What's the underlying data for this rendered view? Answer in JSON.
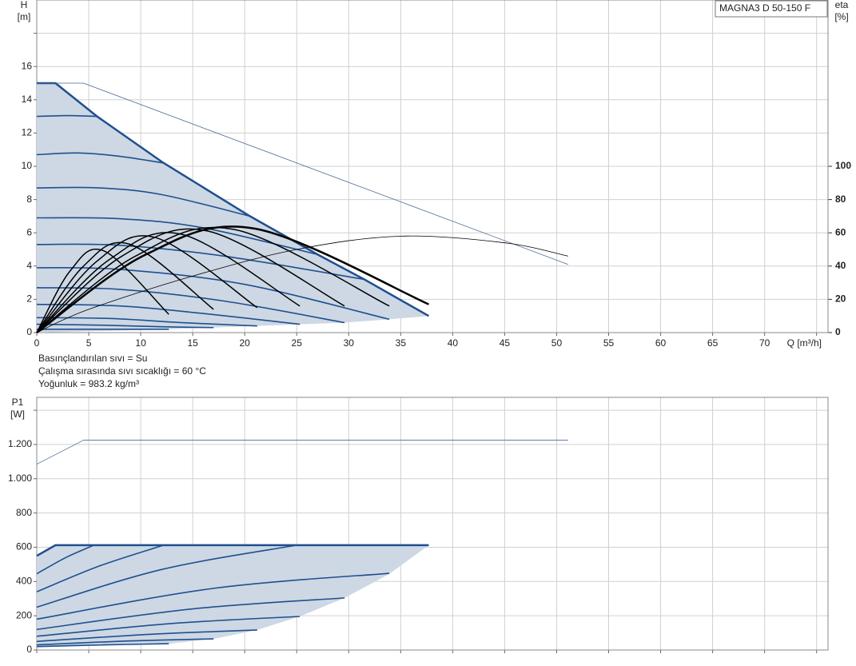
{
  "model": "MAGNA3 D 50-150 F",
  "notes": [
    "Basınçlandırılan sıvı = Su",
    "Çalışma sırasında sıvı sıcaklığı = 60 °C",
    "Yoğunluk = 983.2 kg/m³"
  ],
  "chart_data": [
    {
      "type": "line",
      "ylabel": "H",
      "yunit": "[m]",
      "y2label": "eta",
      "y2unit": "[%]",
      "xlabel": "Q [m³/h]",
      "xlim": [
        0,
        76.1
      ],
      "ylim": [
        0,
        20
      ],
      "y2lim": [
        0,
        200
      ],
      "xticks": [
        0,
        5,
        10,
        15,
        20,
        25,
        30,
        35,
        40,
        45,
        50,
        55,
        60,
        65,
        70,
        {
          "value": 75,
          "label": null
        }
      ],
      "yticks": [
        0,
        2,
        4,
        6,
        8,
        10,
        12,
        14,
        16,
        {
          "value": 18,
          "label": null
        }
      ],
      "y2ticks": [
        0,
        20,
        40,
        60,
        80,
        100
      ],
      "grid": true,
      "fill_color": "#cdd8e4",
      "lower": {
        "x": [
          0,
          12.7,
          17,
          21.2,
          25.3,
          29.6,
          33.9,
          37.7
        ],
        "values": [
          0,
          0.2,
          0.3,
          0.4,
          0.5,
          0.6,
          0.8,
          1.0
        ]
      },
      "series": [
        {
          "color": "#1f4f8f",
          "width": 2.5,
          "smooth": false,
          "x": [
            0,
            1.8,
            5.8,
            12.2,
            20.5,
            27,
            31.5,
            37.7
          ],
          "values": [
            15,
            15,
            13,
            10.2,
            7.0,
            4.7,
            3.2,
            1.0
          ]
        },
        {
          "color": "#1f4f8f",
          "width": 1.6,
          "smooth": true,
          "x": [
            0,
            3,
            5.8
          ],
          "values": [
            13,
            13.05,
            13
          ]
        },
        {
          "color": "#1f4f8f",
          "width": 1.6,
          "smooth": true,
          "x": [
            0,
            4,
            8,
            12.2
          ],
          "values": [
            10.7,
            10.8,
            10.6,
            10.2
          ]
        },
        {
          "color": "#1f4f8f",
          "width": 1.6,
          "smooth": true,
          "x": [
            0,
            6,
            12,
            20.5
          ],
          "values": [
            8.7,
            8.7,
            8.3,
            7.0
          ]
        },
        {
          "color": "#1f4f8f",
          "width": 1.6,
          "smooth": true,
          "x": [
            0,
            8,
            16,
            27
          ],
          "values": [
            6.9,
            6.85,
            6.3,
            4.7
          ]
        },
        {
          "color": "#1f4f8f",
          "width": 1.6,
          "smooth": true,
          "x": [
            0,
            8,
            18,
            31.5
          ],
          "values": [
            5.3,
            5.25,
            4.6,
            3.2
          ]
        },
        {
          "color": "#1f4f8f",
          "width": 1.6,
          "smooth": true,
          "x": [
            0,
            8,
            20,
            33.9
          ],
          "values": [
            3.9,
            3.8,
            2.9,
            0.8
          ]
        },
        {
          "color": "#1f4f8f",
          "width": 1.6,
          "smooth": true,
          "x": [
            0,
            8,
            18,
            29.6
          ],
          "values": [
            2.7,
            2.6,
            1.9,
            0.6
          ]
        },
        {
          "color": "#1f4f8f",
          "width": 1.6,
          "smooth": true,
          "x": [
            0,
            8,
            16,
            25.3
          ],
          "values": [
            1.7,
            1.6,
            1.15,
            0.5
          ]
        },
        {
          "color": "#1f4f8f",
          "width": 1.6,
          "smooth": true,
          "x": [
            0,
            7,
            14,
            21.2
          ],
          "values": [
            0.9,
            0.85,
            0.6,
            0.4
          ]
        },
        {
          "color": "#1f4f8f",
          "width": 1.6,
          "smooth": true,
          "x": [
            0,
            6,
            12,
            17
          ],
          "values": [
            0.5,
            0.45,
            0.35,
            0.3
          ]
        },
        {
          "color": "#1f4f8f",
          "width": 1.6,
          "smooth": true,
          "x": [
            0,
            6,
            12.7
          ],
          "values": [
            0.2,
            0.2,
            0.2
          ]
        },
        {
          "color": "#4a6a96",
          "width": 0.8,
          "smooth": false,
          "x": [
            0,
            4.5,
            51.1
          ],
          "values": [
            15,
            15,
            4.1
          ]
        },
        {
          "color": "#000000",
          "width": 0.8,
          "smooth": true,
          "axis": "y2",
          "x": [
            0,
            5,
            15,
            25,
            35,
            45,
            51.1
          ],
          "values": [
            0,
            14,
            34,
            50,
            58,
            54,
            46
          ]
        },
        {
          "color": "#000000",
          "width": 1.5,
          "smooth": true,
          "axis": "y2",
          "x": [
            0,
            3.2,
            6.5,
            12.7
          ],
          "values": [
            0,
            37,
            49,
            11
          ]
        },
        {
          "color": "#000000",
          "width": 1.5,
          "smooth": true,
          "axis": "y2",
          "x": [
            0,
            4.5,
            9,
            17
          ],
          "values": [
            0,
            40,
            53,
            14
          ]
        },
        {
          "color": "#000000",
          "width": 1.5,
          "smooth": true,
          "axis": "y2",
          "x": [
            0,
            5.8,
            11.5,
            21.2
          ],
          "values": [
            0,
            43,
            57,
            15
          ]
        },
        {
          "color": "#000000",
          "width": 1.5,
          "smooth": true,
          "axis": "y2",
          "x": [
            0,
            7,
            14,
            25.3
          ],
          "values": [
            0,
            44,
            59,
            16
          ]
        },
        {
          "color": "#000000",
          "width": 1.5,
          "smooth": true,
          "axis": "y2",
          "x": [
            0,
            8.2,
            16.5,
            29.6
          ],
          "values": [
            0,
            46,
            61,
            16
          ]
        },
        {
          "color": "#000000",
          "width": 1.5,
          "smooth": true,
          "axis": "y2",
          "x": [
            0,
            9.5,
            19,
            33.9
          ],
          "values": [
            0,
            46,
            62,
            16
          ]
        },
        {
          "color": "#000000",
          "width": 2.5,
          "smooth": true,
          "axis": "y2",
          "x": [
            0,
            10.5,
            21,
            37.7
          ],
          "values": [
            0,
            47,
            62.5,
            17
          ]
        }
      ]
    },
    {
      "type": "line",
      "ylabel": "P1",
      "yunit": "[W]",
      "xlim": [
        0,
        76.1
      ],
      "ylim": [
        0,
        1475
      ],
      "xticks": [
        {
          "value": 0,
          "label": null
        },
        {
          "value": 5,
          "label": null
        },
        {
          "value": 10,
          "label": null
        },
        {
          "value": 15,
          "label": null
        },
        {
          "value": 20,
          "label": null
        },
        {
          "value": 25,
          "label": null
        },
        {
          "value": 30,
          "label": null
        },
        {
          "value": 35,
          "label": null
        },
        {
          "value": 40,
          "label": null
        },
        {
          "value": 45,
          "label": null
        },
        {
          "value": 50,
          "label": null
        },
        {
          "value": 55,
          "label": null
        },
        {
          "value": 60,
          "label": null
        },
        {
          "value": 65,
          "label": null
        },
        {
          "value": 70,
          "label": null
        },
        {
          "value": 75,
          "label": null
        }
      ],
      "yticks": [
        0,
        200,
        400,
        600,
        800,
        {
          "value": 1000,
          "label": "1.000"
        },
        {
          "value": 1200,
          "label": "1.200"
        },
        {
          "value": 1400,
          "label": null
        }
      ],
      "grid": true,
      "fill_color": "#cdd8e4",
      "lower": {
        "x": [
          0,
          12.7,
          17,
          21.2,
          25.3,
          29.6,
          33.9,
          37.7
        ],
        "values": [
          15,
          37,
          65,
          117,
          196,
          304,
          444,
          612
        ]
      },
      "series": [
        {
          "color": "#1f4f8f",
          "width": 2.5,
          "smooth": false,
          "x": [
            0,
            1.8,
            37.7
          ],
          "values": [
            550,
            612,
            612
          ]
        },
        {
          "color": "#1f4f8f",
          "width": 1.6,
          "smooth": true,
          "x": [
            0,
            2.8,
            5.5
          ],
          "values": [
            445,
            540,
            612
          ]
        },
        {
          "color": "#1f4f8f",
          "width": 1.6,
          "smooth": true,
          "x": [
            0,
            6,
            12.2
          ],
          "values": [
            340,
            490,
            612
          ]
        },
        {
          "color": "#1f4f8f",
          "width": 1.6,
          "smooth": true,
          "x": [
            0,
            12,
            25
          ],
          "values": [
            250,
            470,
            612
          ]
        },
        {
          "color": "#1f4f8f",
          "width": 1.6,
          "smooth": true,
          "x": [
            0,
            17,
            33.9
          ],
          "values": [
            180,
            360,
            448
          ]
        },
        {
          "color": "#1f4f8f",
          "width": 1.6,
          "smooth": true,
          "x": [
            0,
            15,
            29.6
          ],
          "values": [
            120,
            240,
            304
          ]
        },
        {
          "color": "#1f4f8f",
          "width": 1.6,
          "smooth": true,
          "x": [
            0,
            13,
            25.3
          ],
          "values": [
            80,
            155,
            196
          ]
        },
        {
          "color": "#1f4f8f",
          "width": 1.6,
          "smooth": true,
          "x": [
            0,
            11,
            21.2
          ],
          "values": [
            50,
            92,
            117
          ]
        },
        {
          "color": "#1f4f8f",
          "width": 1.6,
          "smooth": true,
          "x": [
            0,
            8.5,
            17
          ],
          "values": [
            30,
            52,
            65
          ]
        },
        {
          "color": "#1f4f8f",
          "width": 1.6,
          "smooth": true,
          "x": [
            0,
            6.5,
            12.7
          ],
          "values": [
            20,
            30,
            37
          ]
        },
        {
          "color": "#4a6a96",
          "width": 0.8,
          "smooth": false,
          "x": [
            0,
            4.5,
            51.1
          ],
          "values": [
            1085,
            1225,
            1225
          ]
        }
      ]
    }
  ]
}
